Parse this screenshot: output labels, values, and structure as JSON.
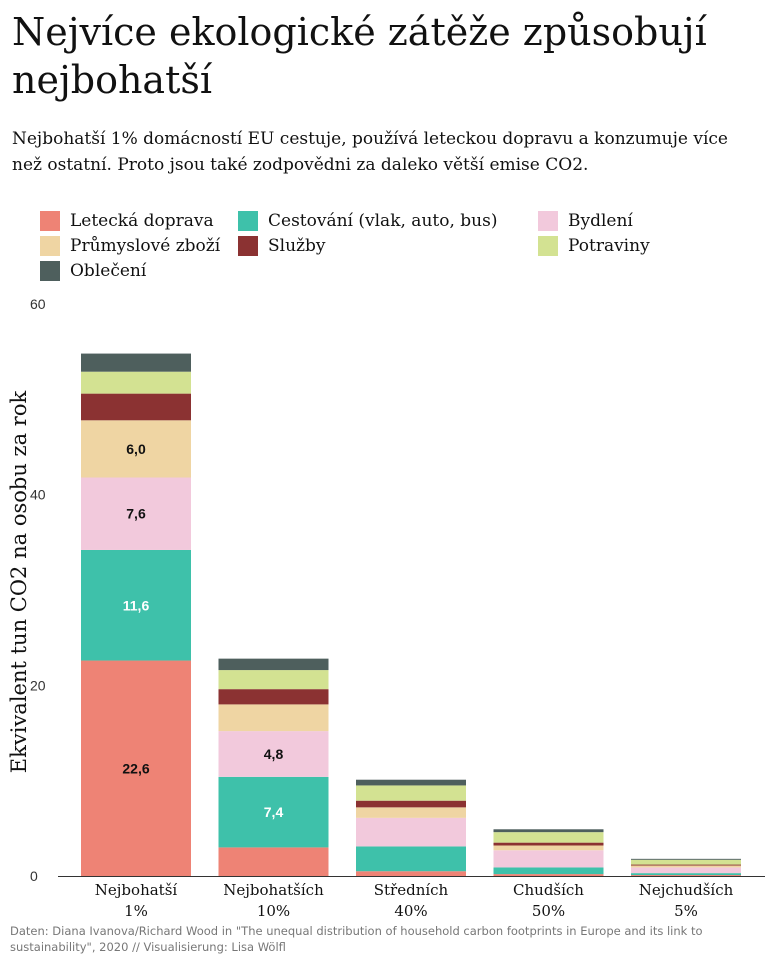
{
  "title": "Nejvíce ekologické zátěže způsobují nejbohatší",
  "subtitle": "Nejbohatší 1% domácností EU cestuje, používá leteckou dopravu a konzumuje více než ostatní. Proto jsou také zodpovědni za daleko větší emise CO2.",
  "source": "Daten: Diana Ivanova/Richard Wood in \"The unequal distribution of household carbon footprints in Europe and its link to sustainability\", 2020 // Visualisierung: Lisa Wölfl",
  "chart_data": {
    "type": "bar",
    "stacked": true,
    "ylabel": "Ekvivalent tun CO2 na osobu za rok",
    "ylim": [
      0,
      60
    ],
    "yticks": [
      "0",
      "20",
      "40",
      "60"
    ],
    "grid": false,
    "legend_position": "top",
    "categories": [
      [
        "Nejbohatší",
        "1%"
      ],
      [
        "Nejbohatších",
        "10%"
      ],
      [
        "Středních",
        "40%"
      ],
      [
        "Chudších",
        "50%"
      ],
      [
        "Nejchudších",
        "5%"
      ]
    ],
    "series": [
      {
        "name": "Letecká doprava",
        "color": "#ee8375",
        "values": [
          22.6,
          3.0,
          0.5,
          0.2,
          0.1
        ]
      },
      {
        "name": "Cestování (vlak, auto, bus)",
        "color": "#3ec1aa",
        "values": [
          11.6,
          7.4,
          2.6,
          0.7,
          0.2
        ]
      },
      {
        "name": "Bydlení",
        "color": "#f2c9dc",
        "values": [
          7.6,
          4.8,
          3.0,
          1.8,
          0.6
        ]
      },
      {
        "name": "Průmyslové zboží",
        "color": "#efd5a3",
        "values": [
          6.0,
          2.8,
          1.1,
          0.5,
          0.2
        ]
      },
      {
        "name": "Služby",
        "color": "#8b3232",
        "values": [
          2.8,
          1.6,
          0.7,
          0.3,
          0.1
        ]
      },
      {
        "name": "Potraviny",
        "color": "#d3e292",
        "values": [
          2.3,
          2.0,
          1.6,
          1.1,
          0.5
        ]
      },
      {
        "name": "Oblečení",
        "color": "#4e5f5d",
        "values": [
          1.9,
          1.2,
          0.6,
          0.3,
          0.1
        ]
      }
    ],
    "data_labels": [
      {
        "category_index": 0,
        "series_index": 0,
        "text": "22,6",
        "color": "#111111"
      },
      {
        "category_index": 0,
        "series_index": 1,
        "text": "11,6",
        "color": "#ffffff"
      },
      {
        "category_index": 0,
        "series_index": 2,
        "text": "7,6",
        "color": "#111111"
      },
      {
        "category_index": 0,
        "series_index": 3,
        "text": "6,0",
        "color": "#111111"
      },
      {
        "category_index": 1,
        "series_index": 1,
        "text": "7,4",
        "color": "#ffffff"
      },
      {
        "category_index": 1,
        "series_index": 2,
        "text": "4,8",
        "color": "#111111"
      }
    ]
  }
}
